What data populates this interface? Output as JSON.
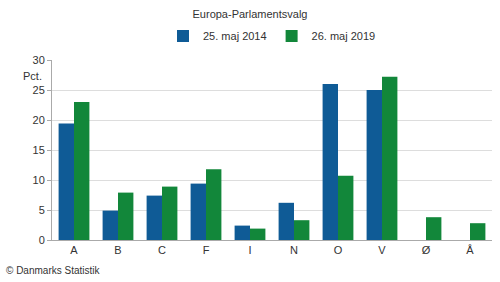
{
  "chart_data": {
    "type": "bar",
    "title": "Europa-Parlamentsvalg",
    "y_label": "Pct.",
    "source": "© Danmarks Statistik",
    "categories": [
      "A",
      "B",
      "C",
      "F",
      "I",
      "N",
      "O",
      "V",
      "Ø",
      "Å"
    ],
    "series": [
      {
        "name": "25. maj 2014",
        "color": "#0f5b96",
        "values": [
          19.4,
          4.9,
          7.4,
          9.4,
          2.4,
          6.2,
          26.0,
          25.0,
          null,
          null
        ]
      },
      {
        "name": "26. maj 2019",
        "color": "#12873a",
        "values": [
          23.0,
          7.9,
          8.9,
          11.8,
          1.9,
          3.3,
          10.7,
          27.2,
          3.8,
          2.8
        ]
      }
    ],
    "ylim": [
      0,
      30
    ],
    "yticks": [
      0,
      5,
      10,
      15,
      20,
      25,
      30
    ],
    "grid": true,
    "legend": "top"
  }
}
